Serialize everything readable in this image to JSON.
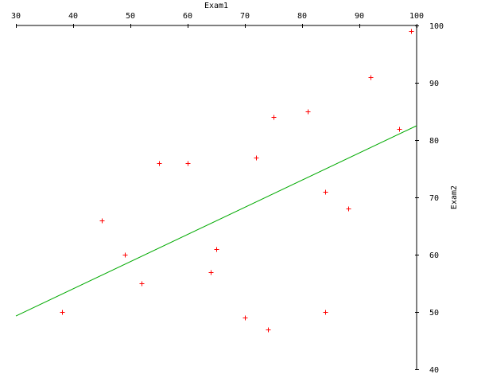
{
  "chart_data": {
    "type": "scatter",
    "title": "",
    "xlabel": "Exam1",
    "ylabel": "Exam2",
    "xlim": [
      30,
      100
    ],
    "ylim": [
      40,
      100
    ],
    "x_ticks": [
      30,
      40,
      50,
      60,
      70,
      80,
      90,
      100
    ],
    "y_ticks": [
      40,
      50,
      60,
      70,
      80,
      90,
      100
    ],
    "x_axis_position": "top",
    "y_axis_position": "right",
    "grid": false,
    "marker": "+",
    "series": [
      {
        "color": "#ff0000",
        "points": [
          {
            "x": 38,
            "y": 50
          },
          {
            "x": 45,
            "y": 66
          },
          {
            "x": 49,
            "y": 60
          },
          {
            "x": 52,
            "y": 55
          },
          {
            "x": 55,
            "y": 76
          },
          {
            "x": 60,
            "y": 76
          },
          {
            "x": 64,
            "y": 57
          },
          {
            "x": 65,
            "y": 61
          },
          {
            "x": 70,
            "y": 49
          },
          {
            "x": 72,
            "y": 77
          },
          {
            "x": 74,
            "y": 47
          },
          {
            "x": 75,
            "y": 84
          },
          {
            "x": 81,
            "y": 85
          },
          {
            "x": 84,
            "y": 71
          },
          {
            "x": 84,
            "y": 50
          },
          {
            "x": 88,
            "y": 68
          },
          {
            "x": 92,
            "y": 91
          },
          {
            "x": 97,
            "y": 82
          },
          {
            "x": 99,
            "y": 99
          }
        ]
      }
    ],
    "fit_line": {
      "color": "#00aa00",
      "points": [
        {
          "x": 30,
          "y": 49.3
        },
        {
          "x": 100,
          "y": 82.5
        }
      ]
    }
  }
}
